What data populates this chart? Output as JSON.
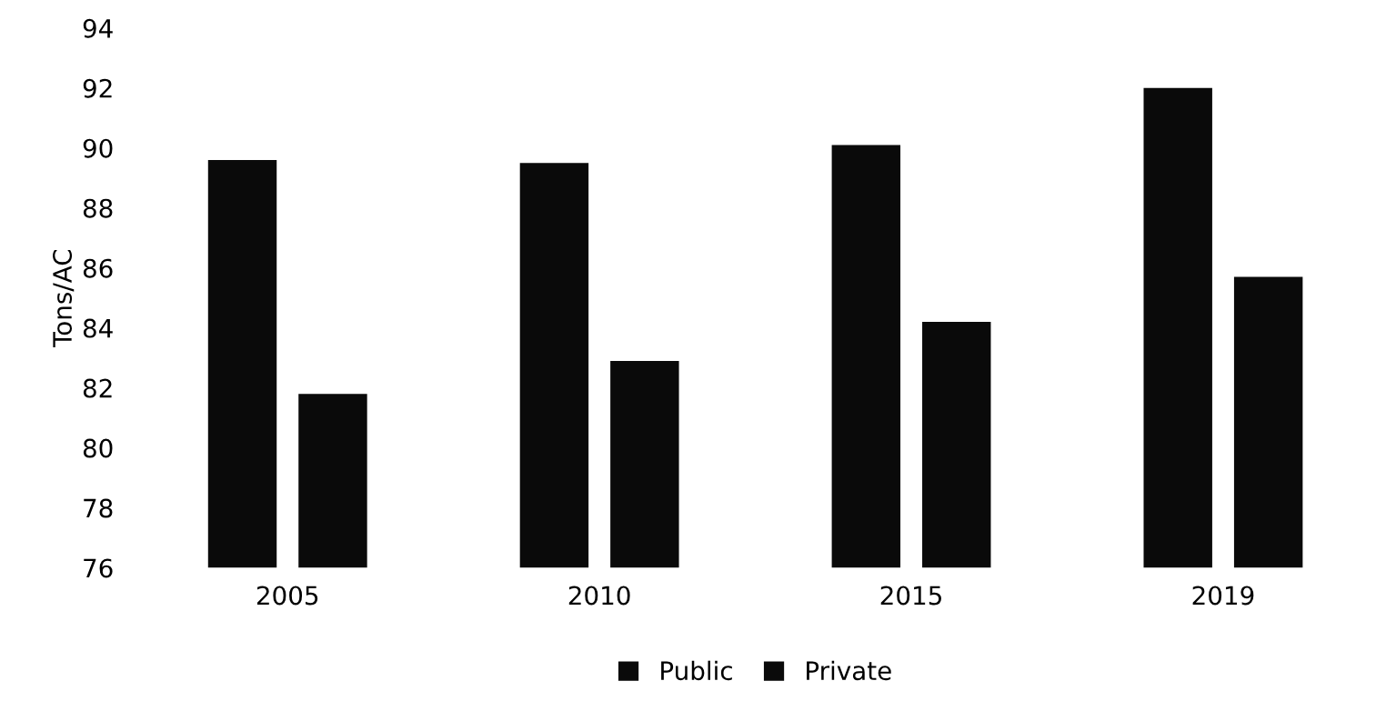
{
  "chart_data": {
    "type": "bar",
    "ylabel": "Tons/AC",
    "categories": [
      "2005",
      "2010",
      "2015",
      "2019"
    ],
    "series": [
      {
        "name": "Public",
        "color": "#0a0a0a",
        "values": [
          89.6,
          89.5,
          90.1,
          92.0
        ]
      },
      {
        "name": "Private",
        "color": "#0a0a0a",
        "values": [
          81.8,
          82.9,
          84.2,
          85.7
        ]
      }
    ],
    "ylim": [
      76,
      94
    ],
    "yticks": [
      76,
      78,
      80,
      82,
      84,
      86,
      88,
      90,
      92,
      94
    ],
    "grid": false,
    "legend": "bottom"
  }
}
